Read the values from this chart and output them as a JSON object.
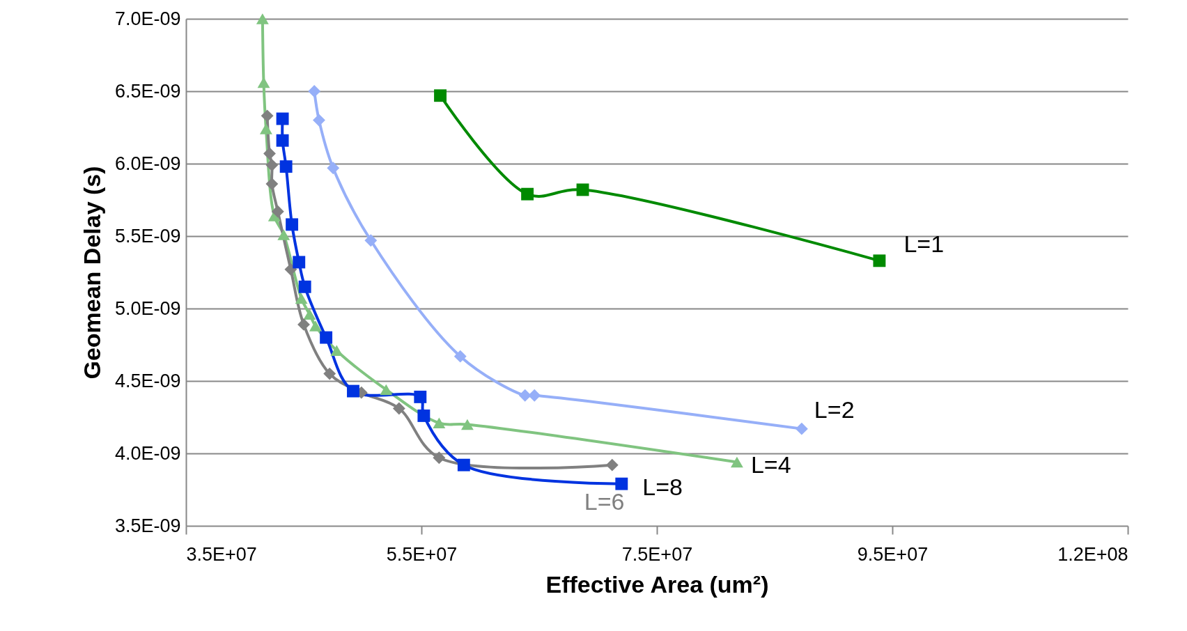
{
  "chart_data": {
    "type": "line",
    "xlabel": "Effective Area (um²)",
    "ylabel": "Geomean Delay (s)",
    "xlim": [
      35000000,
      115000000
    ],
    "ylim": [
      3.5e-09,
      7e-09
    ],
    "xticks": [
      {
        "value": 35000000,
        "label": "3.5E+07"
      },
      {
        "value": 55000000,
        "label": "5.5E+07"
      },
      {
        "value": 75000000,
        "label": "7.5E+07"
      },
      {
        "value": 95000000,
        "label": "9.5E+07"
      },
      {
        "value": 115000000,
        "label": "1.2E+08"
      }
    ],
    "yticks": [
      {
        "value": 3.5e-09,
        "label": "3.5E-09"
      },
      {
        "value": 4e-09,
        "label": "4.0E-09"
      },
      {
        "value": 4.5e-09,
        "label": "4.5E-09"
      },
      {
        "value": 5e-09,
        "label": "5.0E-09"
      },
      {
        "value": 5.5e-09,
        "label": "5.5E-09"
      },
      {
        "value": 6e-09,
        "label": "6.0E-09"
      },
      {
        "value": 6.5e-09,
        "label": "6.5E-09"
      },
      {
        "value": 7e-09,
        "label": "7.0E-09"
      }
    ],
    "grid": "y",
    "legend": false,
    "line_style": "solid",
    "series": [
      {
        "name": "L=1",
        "color": "#008a00",
        "marker": "square",
        "x": [
          56600000,
          64000000,
          68700000,
          93900000
        ],
        "values": [
          6.47e-09,
          5.79e-09,
          5.82e-09,
          5.33e-09
        ]
      },
      {
        "name": "L=2",
        "color": "#96aff8",
        "marker": "diamond",
        "x": [
          45900000,
          46300000,
          47500000,
          50700000,
          58300000,
          63800000,
          64600000,
          87300000
        ],
        "values": [
          6.5e-09,
          6.3e-09,
          5.97e-09,
          5.47e-09,
          4.67e-09,
          4.4e-09,
          4.4e-09,
          4.17e-09
        ]
      },
      {
        "name": "L=4",
        "color": "#80c480",
        "marker": "triangle",
        "x": [
          41500000,
          41600000,
          41800000,
          42500000,
          43300000,
          44800000,
          45500000,
          46000000,
          47800000,
          52000000,
          56500000,
          58900000,
          81800000
        ],
        "values": [
          7e-09,
          6.56e-09,
          6.24e-09,
          5.64e-09,
          5.51e-09,
          5.07e-09,
          4.96e-09,
          4.88e-09,
          4.71e-09,
          4.44e-09,
          4.21e-09,
          4.2e-09,
          3.94e-09
        ]
      },
      {
        "name": "L=6",
        "color": "#808080",
        "marker": "diamond",
        "x": [
          41900000,
          42100000,
          42300000,
          42300000,
          42800000,
          43900000,
          45000000,
          47200000,
          49900000,
          53100000,
          56500000,
          71200000
        ],
        "values": [
          6.33e-09,
          6.07e-09,
          5.99e-09,
          5.86e-09,
          5.67e-09,
          5.27e-09,
          4.89e-09,
          4.55e-09,
          4.42e-09,
          4.31e-09,
          3.97e-09,
          3.92e-09
        ]
      },
      {
        "name": "L=8",
        "color": "#0033e0",
        "marker": "square",
        "x": [
          43200000,
          43200000,
          43500000,
          44000000,
          44600000,
          45100000,
          46900000,
          49200000,
          54900000,
          55200000,
          58600000,
          72000000
        ],
        "values": [
          6.31e-09,
          6.16e-09,
          5.98e-09,
          5.58e-09,
          5.32e-09,
          5.15e-09,
          4.8e-09,
          4.43e-09,
          4.39e-09,
          4.26e-09,
          3.92e-09,
          3.79e-09
        ]
      }
    ]
  }
}
